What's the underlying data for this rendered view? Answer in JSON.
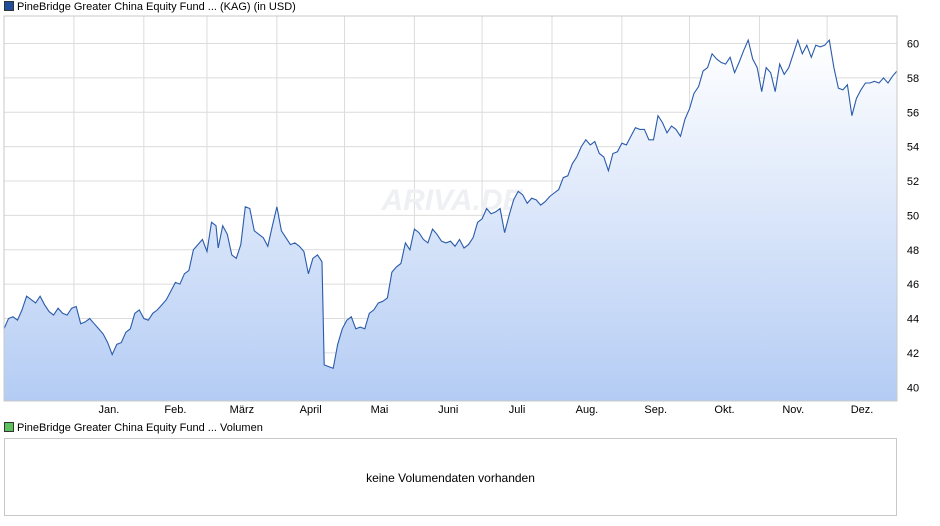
{
  "price_legend": {
    "name": "PineBridge Greater China Equity Fund ...",
    "tag1": "(KAG)",
    "tag2": "(in USD)",
    "color": "#1f4e9c"
  },
  "volume_legend": {
    "name": "PineBridge Greater China Equity Fund ...",
    "tag1": "Volumen",
    "color": "#5cc05c"
  },
  "volume_panel": {
    "message": "keine Volumendaten vorhanden"
  },
  "watermark": "ARIVA.DE",
  "chart_data": {
    "type": "area",
    "title": "",
    "xlabel": "",
    "ylabel": "",
    "ylim": [
      39.2,
      61.6
    ],
    "yticks": [
      40,
      42,
      44,
      46,
      48,
      50,
      52,
      54,
      56,
      58,
      60
    ],
    "y_axis_side": "right",
    "grid": true,
    "months": [
      {
        "label": "Jan.",
        "day": 0
      },
      {
        "label": "Feb.",
        "day": 31
      },
      {
        "label": "März",
        "day": 59
      },
      {
        "label": "April",
        "day": 90
      },
      {
        "label": "Mai",
        "day": 120
      },
      {
        "label": "Juni",
        "day": 151
      },
      {
        "label": "Juli",
        "day": 181
      },
      {
        "label": "Aug.",
        "day": 212
      },
      {
        "label": "Sep.",
        "day": 243
      },
      {
        "label": "Okt.",
        "day": 273
      },
      {
        "label": "Nov.",
        "day": 304
      },
      {
        "label": "Dez.",
        "day": 334
      }
    ],
    "series": [
      {
        "points": [
          [
            -31,
            43.4
          ],
          [
            -29,
            44.0
          ],
          [
            -27,
            44.1
          ],
          [
            -25,
            43.9
          ],
          [
            -23,
            44.5
          ],
          [
            -21,
            45.3
          ],
          [
            -19,
            45.1
          ],
          [
            -17,
            44.9
          ],
          [
            -15,
            45.3
          ],
          [
            -13,
            44.8
          ],
          [
            -11,
            44.4
          ],
          [
            -9,
            44.2
          ],
          [
            -7,
            44.6
          ],
          [
            -5,
            44.3
          ],
          [
            -3,
            44.2
          ],
          [
            -1,
            44.6
          ],
          [
            1,
            44.7
          ],
          [
            3,
            43.7
          ],
          [
            5,
            43.8
          ],
          [
            7,
            44.0
          ],
          [
            9,
            43.7
          ],
          [
            11,
            43.4
          ],
          [
            13,
            43.1
          ],
          [
            15,
            42.6
          ],
          [
            17,
            41.9
          ],
          [
            19,
            42.5
          ],
          [
            21,
            42.6
          ],
          [
            23,
            43.2
          ],
          [
            25,
            43.4
          ],
          [
            27,
            44.3
          ],
          [
            29,
            44.5
          ],
          [
            31,
            44.0
          ],
          [
            33,
            43.9
          ],
          [
            35,
            44.3
          ],
          [
            37,
            44.5
          ],
          [
            39,
            44.8
          ],
          [
            41,
            45.1
          ],
          [
            43,
            45.6
          ],
          [
            45,
            46.1
          ],
          [
            47,
            46.0
          ],
          [
            49,
            46.6
          ],
          [
            51,
            46.8
          ],
          [
            53,
            48.0
          ],
          [
            55,
            48.3
          ],
          [
            57,
            48.6
          ],
          [
            59,
            47.9
          ],
          [
            61,
            49.6
          ],
          [
            63,
            49.4
          ],
          [
            64,
            48.1
          ],
          [
            66,
            49.4
          ],
          [
            68,
            48.9
          ],
          [
            70,
            47.7
          ],
          [
            72,
            47.5
          ],
          [
            74,
            48.3
          ],
          [
            76,
            50.5
          ],
          [
            78,
            50.4
          ],
          [
            80,
            49.1
          ],
          [
            82,
            48.9
          ],
          [
            84,
            48.7
          ],
          [
            86,
            48.2
          ],
          [
            88,
            49.4
          ],
          [
            90,
            50.5
          ],
          [
            92,
            49.1
          ],
          [
            94,
            48.7
          ],
          [
            96,
            48.3
          ],
          [
            98,
            48.4
          ],
          [
            100,
            48.2
          ],
          [
            102,
            47.9
          ],
          [
            104,
            46.6
          ],
          [
            106,
            47.5
          ],
          [
            108,
            47.7
          ],
          [
            110,
            47.3
          ],
          [
            111,
            41.3
          ],
          [
            113,
            41.2
          ],
          [
            115,
            41.1
          ],
          [
            117,
            42.5
          ],
          [
            119,
            43.4
          ],
          [
            121,
            43.9
          ],
          [
            123,
            44.1
          ],
          [
            125,
            43.4
          ],
          [
            127,
            43.5
          ],
          [
            129,
            43.4
          ],
          [
            131,
            44.3
          ],
          [
            133,
            44.5
          ],
          [
            135,
            44.9
          ],
          [
            137,
            45.0
          ],
          [
            139,
            45.2
          ],
          [
            141,
            46.7
          ],
          [
            143,
            47.0
          ],
          [
            145,
            47.2
          ],
          [
            147,
            48.4
          ],
          [
            149,
            48.0
          ],
          [
            151,
            49.2
          ],
          [
            153,
            49.0
          ],
          [
            155,
            48.6
          ],
          [
            157,
            48.4
          ],
          [
            159,
            49.2
          ],
          [
            161,
            48.9
          ],
          [
            163,
            48.5
          ],
          [
            165,
            48.4
          ],
          [
            167,
            48.5
          ],
          [
            169,
            48.2
          ],
          [
            171,
            48.6
          ],
          [
            173,
            48.1
          ],
          [
            175,
            48.3
          ],
          [
            177,
            48.7
          ],
          [
            179,
            49.6
          ],
          [
            181,
            49.8
          ],
          [
            183,
            50.4
          ],
          [
            185,
            50.1
          ],
          [
            187,
            50.2
          ],
          [
            189,
            50.4
          ],
          [
            191,
            49.0
          ],
          [
            193,
            50.0
          ],
          [
            195,
            50.9
          ],
          [
            197,
            51.4
          ],
          [
            199,
            51.2
          ],
          [
            201,
            50.7
          ],
          [
            203,
            51.0
          ],
          [
            205,
            50.9
          ],
          [
            207,
            50.6
          ],
          [
            209,
            50.8
          ],
          [
            211,
            51.1
          ],
          [
            213,
            51.3
          ],
          [
            215,
            51.5
          ],
          [
            217,
            52.2
          ],
          [
            219,
            52.3
          ],
          [
            221,
            53.0
          ],
          [
            223,
            53.4
          ],
          [
            225,
            54.0
          ],
          [
            227,
            54.4
          ],
          [
            229,
            54.1
          ],
          [
            231,
            54.3
          ],
          [
            233,
            53.6
          ],
          [
            235,
            53.4
          ],
          [
            237,
            52.6
          ],
          [
            239,
            53.6
          ],
          [
            241,
            53.7
          ],
          [
            243,
            54.2
          ],
          [
            245,
            54.1
          ],
          [
            247,
            54.6
          ],
          [
            249,
            55.1
          ],
          [
            251,
            55.0
          ],
          [
            253,
            55.0
          ],
          [
            255,
            54.4
          ],
          [
            257,
            54.4
          ],
          [
            259,
            55.8
          ],
          [
            261,
            55.4
          ],
          [
            263,
            54.8
          ],
          [
            265,
            55.2
          ],
          [
            267,
            55.0
          ],
          [
            269,
            54.6
          ],
          [
            271,
            55.6
          ],
          [
            273,
            56.2
          ],
          [
            275,
            57.1
          ],
          [
            277,
            57.5
          ],
          [
            279,
            58.4
          ],
          [
            281,
            58.6
          ],
          [
            283,
            59.4
          ],
          [
            285,
            59.1
          ],
          [
            287,
            58.9
          ],
          [
            289,
            58.8
          ],
          [
            291,
            59.2
          ],
          [
            293,
            58.3
          ],
          [
            295,
            58.9
          ],
          [
            297,
            59.6
          ],
          [
            299,
            60.2
          ],
          [
            301,
            59.1
          ],
          [
            303,
            58.6
          ],
          [
            305,
            57.2
          ],
          [
            307,
            58.6
          ],
          [
            309,
            58.3
          ],
          [
            311,
            57.2
          ],
          [
            313,
            58.8
          ],
          [
            315,
            58.2
          ],
          [
            317,
            58.6
          ],
          [
            319,
            59.4
          ],
          [
            321,
            60.2
          ],
          [
            323,
            59.4
          ],
          [
            325,
            59.9
          ],
          [
            327,
            59.2
          ],
          [
            329,
            59.9
          ],
          [
            331,
            59.8
          ],
          [
            333,
            59.9
          ],
          [
            335,
            60.2
          ],
          [
            337,
            58.6
          ],
          [
            339,
            57.4
          ],
          [
            341,
            57.3
          ],
          [
            343,
            57.6
          ],
          [
            345,
            55.8
          ],
          [
            347,
            56.8
          ],
          [
            349,
            57.3
          ],
          [
            351,
            57.7
          ],
          [
            353,
            57.7
          ],
          [
            355,
            57.8
          ],
          [
            357,
            57.7
          ],
          [
            359,
            58.0
          ],
          [
            361,
            57.7
          ],
          [
            363,
            58.1
          ],
          [
            365,
            58.4
          ]
        ]
      }
    ]
  }
}
